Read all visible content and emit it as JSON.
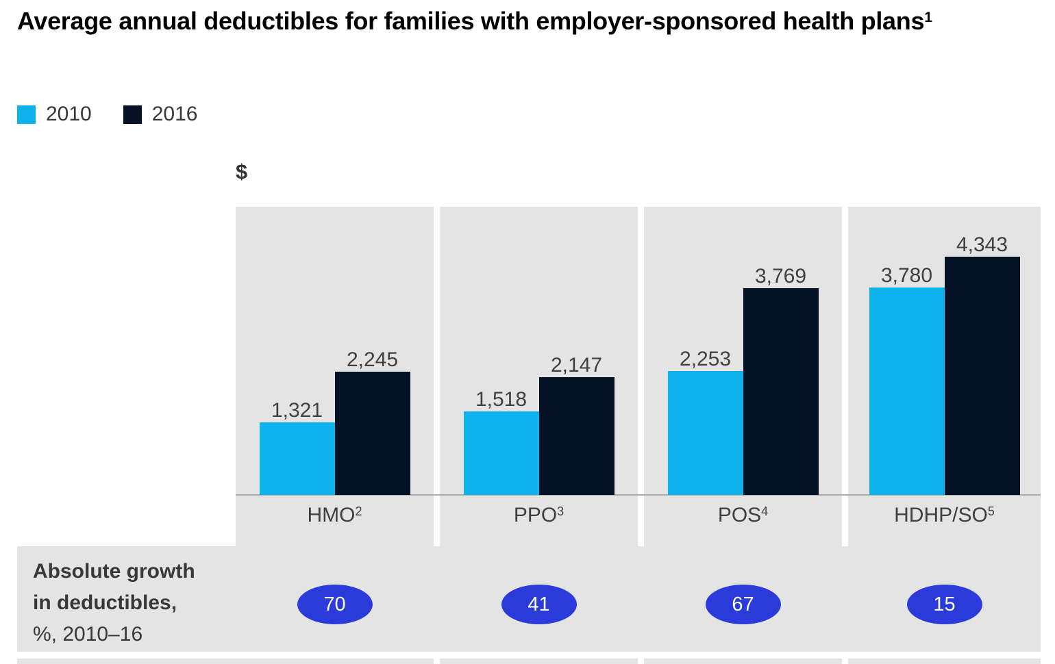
{
  "title": {
    "text": "Average annual deductibles for families with employer-sponsored health plans",
    "footnote_marker": "1"
  },
  "legend": [
    {
      "label": "2010",
      "color": "#0eb2ec"
    },
    {
      "label": "2016",
      "color": "#051226"
    }
  ],
  "axis": {
    "unit_label": "$"
  },
  "chart_data": {
    "type": "bar",
    "unit": "$",
    "categories": [
      {
        "label": "HMO",
        "footnote": "2"
      },
      {
        "label": "PPO",
        "footnote": "3"
      },
      {
        "label": "POS",
        "footnote": "4"
      },
      {
        "label": "HDHP/SO",
        "footnote": "5"
      }
    ],
    "series": [
      {
        "name": "2010",
        "color": "#0eb2ec",
        "values": [
          1321,
          1518,
          2253,
          3780
        ],
        "value_labels": [
          "1,321",
          "1,518",
          "2,253",
          "3,780"
        ]
      },
      {
        "name": "2016",
        "color": "#051226",
        "values": [
          2245,
          2147,
          3769,
          4343
        ],
        "value_labels": [
          "2,245",
          "2,147",
          "3,769",
          "4,343"
        ]
      }
    ],
    "ylim": [
      0,
      5200
    ],
    "grid": false,
    "legend_position": "top-left",
    "growth_row": {
      "label_lines": [
        "Absolute growth",
        "in deductibles,"
      ],
      "unit_line": "%, 2010–16",
      "values": [
        70,
        41,
        67,
        15
      ],
      "badge_color": "#2b3bd9"
    }
  }
}
